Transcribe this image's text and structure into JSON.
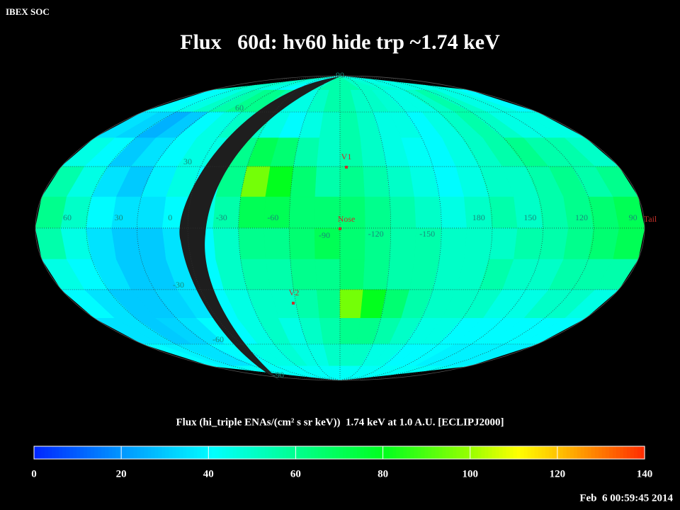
{
  "header": {
    "corner": "IBEX SOC",
    "title": "Flux   60d: hv60 hide trp ~1.74 keV"
  },
  "map": {
    "lon_labels": [
      60,
      30,
      0,
      -30,
      -60,
      -90,
      -120,
      -150,
      180,
      150,
      120,
      90
    ],
    "lat_labels": [
      90,
      60,
      30,
      -30,
      -60,
      -90
    ],
    "markers": [
      "V1",
      "Nose",
      "V2",
      "Tail"
    ],
    "values": [
      [
        50,
        50,
        48,
        48,
        45,
        45,
        40,
        40,
        45,
        50,
        55,
        55,
        55,
        55,
        50,
        50,
        48,
        48,
        45,
        45,
        45,
        45,
        45,
        45
      ],
      [
        40,
        42,
        45,
        50,
        55,
        60,
        60,
        55,
        45,
        45,
        50,
        55,
        55,
        50,
        50,
        48,
        45,
        45,
        50,
        55,
        50,
        45,
        45,
        40
      ],
      [
        35,
        32,
        25,
        30,
        40,
        45,
        50,
        50,
        45,
        40,
        45,
        50,
        55,
        50,
        45,
        45,
        40,
        45,
        50,
        55,
        50,
        45,
        45,
        45
      ],
      [
        45,
        40,
        30,
        35,
        40,
        45,
        45,
        60,
        70,
        65,
        55,
        50,
        55,
        50,
        45,
        42,
        40,
        45,
        50,
        55,
        60,
        55,
        55,
        50
      ],
      [
        55,
        45,
        35,
        30,
        38,
        45,
        40,
        60,
        95,
        80,
        65,
        55,
        60,
        55,
        50,
        45,
        40,
        45,
        50,
        50,
        55,
        60,
        55,
        60
      ],
      [
        60,
        50,
        40,
        35,
        35,
        40,
        45,
        55,
        70,
        70,
        65,
        65,
        65,
        60,
        55,
        50,
        45,
        50,
        55,
        50,
        55,
        60,
        65,
        70
      ],
      [
        55,
        45,
        35,
        30,
        30,
        35,
        40,
        50,
        60,
        60,
        65,
        70,
        65,
        60,
        55,
        55,
        50,
        50,
        50,
        55,
        55,
        60,
        65,
        70
      ],
      [
        45,
        40,
        35,
        30,
        30,
        35,
        40,
        50,
        55,
        55,
        60,
        60,
        65,
        60,
        55,
        55,
        50,
        50,
        55,
        50,
        50,
        55,
        55,
        55
      ],
      [
        40,
        35,
        30,
        30,
        32,
        35,
        40,
        45,
        50,
        50,
        55,
        60,
        95,
        80,
        65,
        55,
        50,
        50,
        50,
        45,
        45,
        50,
        50,
        45
      ],
      [
        35,
        35,
        30,
        32,
        35,
        40,
        40,
        45,
        50,
        45,
        50,
        55,
        60,
        60,
        55,
        50,
        45,
        45,
        40,
        40,
        40,
        40,
        40,
        40
      ],
      [
        40,
        38,
        35,
        35,
        40,
        42,
        45,
        45,
        48,
        45,
        45,
        50,
        50,
        50,
        45,
        45,
        40,
        40,
        40,
        38,
        38,
        38,
        38,
        38
      ],
      [
        42,
        42,
        42,
        42,
        42,
        42,
        42,
        42,
        42,
        42,
        42,
        42,
        42,
        42,
        42,
        42,
        42,
        42,
        42,
        42,
        42,
        42,
        42,
        42
      ]
    ]
  },
  "colorbar": {
    "caption": "Flux (hi_triple ENAs/(cm² s sr keV))  1.74 keV at 1.0 A.U. [ECLIPJ2000]",
    "lim": [
      0,
      140
    ],
    "ticks": [
      0,
      20,
      40,
      60,
      80,
      100,
      120,
      140
    ]
  },
  "footer": {
    "timestamp": "Feb  6 00:59:45 2014"
  }
}
